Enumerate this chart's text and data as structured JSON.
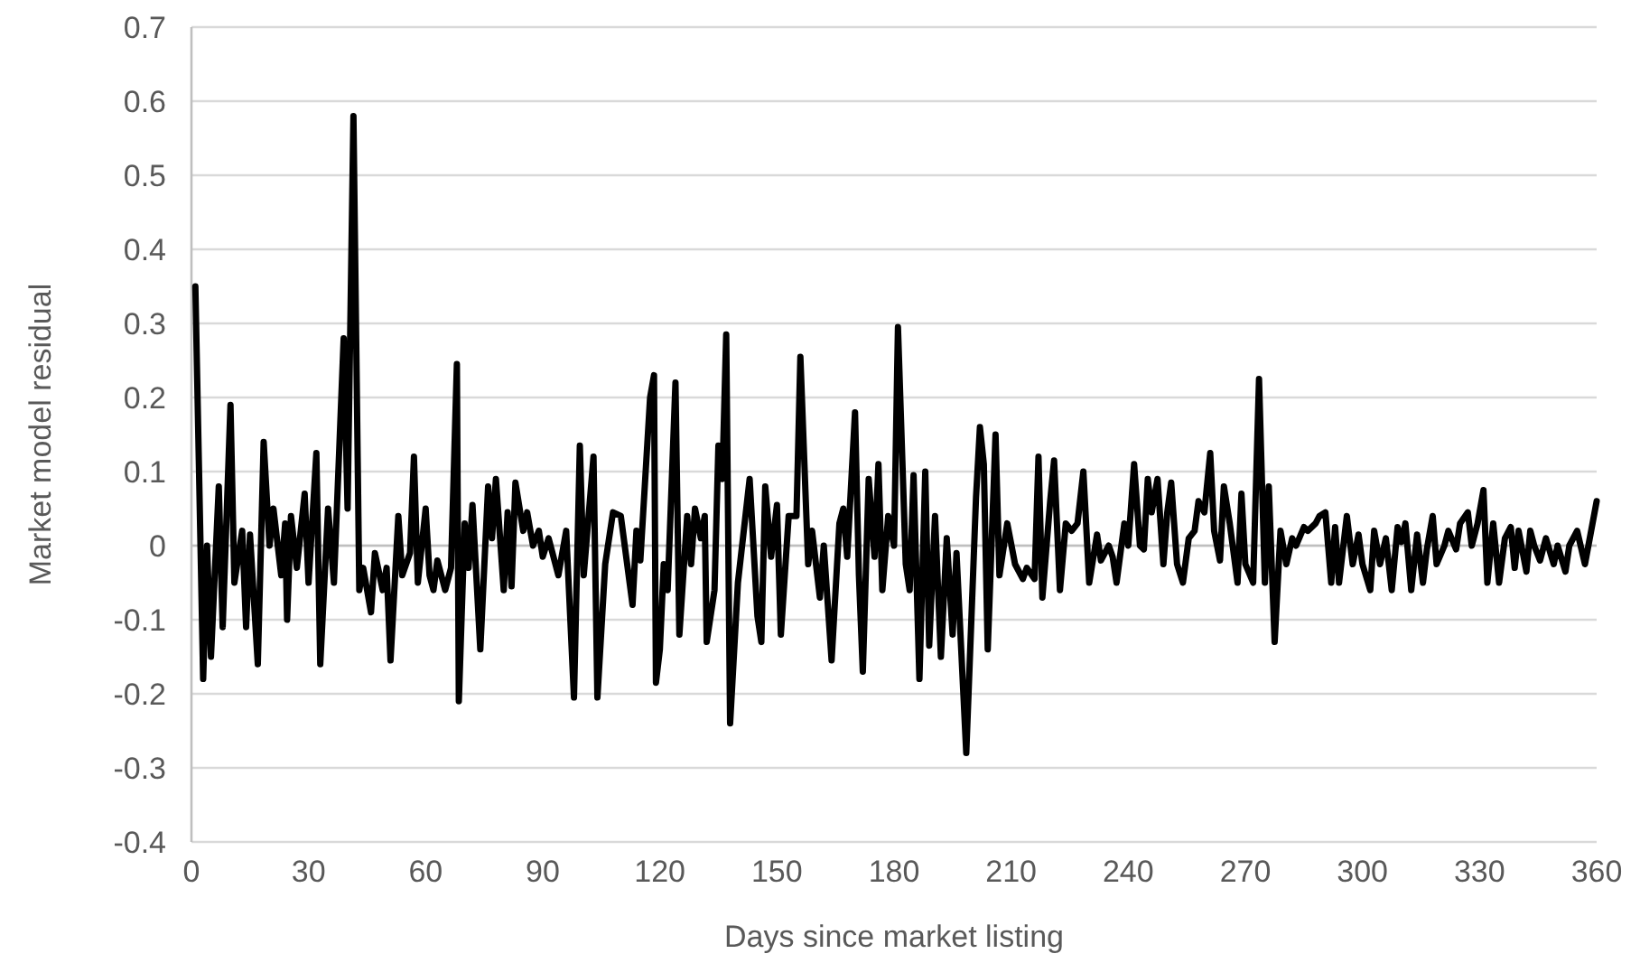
{
  "chart_data": {
    "type": "line",
    "xlabel": "Days since market listing",
    "ylabel": "Market model residual",
    "xlim": [
      0,
      360
    ],
    "xticks": [
      0,
      30,
      60,
      90,
      120,
      150,
      180,
      210,
      240,
      270,
      300,
      330,
      360
    ],
    "ylim": [
      -0.4,
      0.7
    ],
    "yticks": [
      -0.4,
      -0.3,
      -0.2,
      -0.1,
      0,
      0.1,
      0.2,
      0.3,
      0.4,
      0.5,
      0.6,
      0.7
    ],
    "grid": "y",
    "series": [
      {
        "color": "#000000",
        "x": [
          1,
          3,
          4,
          5,
          7,
          8,
          10,
          11,
          13,
          14,
          15,
          17,
          18.5,
          20,
          21,
          23,
          24,
          24.5,
          25.5,
          27,
          29,
          30,
          32,
          33,
          35,
          36.5,
          39,
          40,
          41.5,
          43,
          44,
          46,
          47,
          49,
          50,
          51,
          53,
          54,
          56,
          57,
          58,
          60,
          61,
          62,
          63,
          65,
          66.5,
          68,
          68.5,
          70,
          71,
          72,
          74,
          76,
          77,
          78,
          80,
          81,
          82,
          83,
          85,
          86,
          87.5,
          89,
          90,
          91.5,
          94,
          96,
          98,
          99.5,
          100.5,
          103,
          104,
          106,
          108,
          110,
          113,
          114,
          115,
          117.5,
          118.5,
          119,
          120,
          121,
          122,
          124,
          125,
          127,
          128,
          129,
          130.5,
          131.5,
          132,
          134,
          135,
          136,
          137,
          138,
          140,
          143,
          145,
          146,
          147,
          148.5,
          150,
          151,
          153,
          155,
          156,
          158,
          159,
          161,
          162,
          164,
          166,
          167,
          168,
          170,
          171,
          172,
          173.5,
          175,
          176,
          177,
          178.5,
          180,
          181,
          183,
          184,
          185,
          186.5,
          188,
          189,
          190.5,
          192,
          193.5,
          195,
          196,
          198.5,
          201,
          202,
          203,
          204,
          206,
          207,
          209,
          211,
          213,
          214,
          216,
          217,
          218,
          220,
          221,
          222.5,
          224,
          225.5,
          227,
          228.5,
          230,
          232,
          233,
          235,
          236,
          237,
          239,
          240,
          241.5,
          243,
          244,
          245,
          246,
          247.5,
          249,
          250,
          251,
          252.5,
          254,
          255.5,
          257,
          258,
          259.5,
          261,
          262,
          263.5,
          264.5,
          266,
          268,
          269,
          270,
          272,
          273.5,
          275,
          276,
          277.5,
          279,
          280.5,
          282,
          283,
          285,
          286,
          288,
          289,
          290.5,
          292,
          293,
          294,
          296,
          297.5,
          299,
          300,
          302,
          303,
          304.5,
          306,
          307.5,
          309,
          310,
          311,
          312.5,
          314,
          315.5,
          316.5,
          318,
          319,
          321,
          322,
          324,
          325,
          327,
          328,
          329.5,
          331,
          332,
          333.5,
          335,
          336.5,
          338,
          339,
          340,
          342,
          343,
          344,
          345.5,
          347,
          349,
          350,
          352,
          353,
          355,
          357,
          360
        ],
        "values": [
          0.35,
          -0.18,
          0,
          -0.15,
          0.08,
          -0.11,
          0.19,
          -0.05,
          0.02,
          -0.11,
          0.015,
          -0.16,
          0.14,
          0,
          0.05,
          -0.04,
          0.03,
          -0.1,
          0.04,
          -0.03,
          0.07,
          -0.05,
          0.125,
          -0.16,
          0.05,
          -0.05,
          0.28,
          0.05,
          0.58,
          -0.06,
          -0.03,
          -0.09,
          -0.01,
          -0.06,
          -0.03,
          -0.155,
          0.04,
          -0.04,
          -0.01,
          0.12,
          -0.05,
          0.05,
          -0.04,
          -0.06,
          -0.02,
          -0.06,
          -0.03,
          0.245,
          -0.21,
          0.03,
          -0.03,
          0.055,
          -0.14,
          0.08,
          0.01,
          0.09,
          -0.06,
          0.045,
          -0.055,
          0.085,
          0.02,
          0.045,
          0,
          0.02,
          -0.015,
          0.01,
          -0.04,
          0.02,
          -0.205,
          0.135,
          -0.04,
          0.12,
          -0.205,
          -0.025,
          0.045,
          0.04,
          -0.08,
          0.02,
          -0.02,
          0.2,
          0.23,
          -0.185,
          -0.14,
          -0.025,
          -0.06,
          0.22,
          -0.12,
          0.04,
          -0.025,
          0.05,
          0.01,
          0.04,
          -0.13,
          -0.06,
          0.135,
          0.09,
          0.285,
          -0.24,
          -0.05,
          0.09,
          -0.095,
          -0.13,
          0.08,
          -0.015,
          0.055,
          -0.12,
          0.04,
          0.04,
          0.255,
          -0.025,
          0.02,
          -0.07,
          0,
          -0.155,
          0.03,
          0.05,
          -0.015,
          0.18,
          -0.04,
          -0.17,
          0.09,
          -0.015,
          0.11,
          -0.06,
          0.04,
          0,
          0.295,
          -0.025,
          -0.06,
          0.095,
          -0.18,
          0.1,
          -0.135,
          0.04,
          -0.15,
          0.01,
          -0.12,
          -0.01,
          -0.28,
          0.065,
          0.16,
          0.11,
          -0.14,
          0.15,
          -0.04,
          0.03,
          -0.025,
          -0.045,
          -0.03,
          -0.045,
          0.12,
          -0.07,
          0.06,
          0.115,
          -0.06,
          0.03,
          0.02,
          0.03,
          0.1,
          -0.05,
          0.015,
          -0.02,
          0,
          -0.015,
          -0.05,
          0.03,
          0,
          0.11,
          0,
          -0.005,
          0.09,
          0.045,
          0.09,
          -0.025,
          0.045,
          0.085,
          -0.025,
          -0.05,
          0.01,
          0.02,
          0.06,
          0.045,
          0.125,
          0.02,
          -0.02,
          0.08,
          0.03,
          -0.05,
          0.07,
          -0.025,
          -0.05,
          0.225,
          -0.05,
          0.08,
          -0.13,
          0.02,
          -0.025,
          0.01,
          0,
          0.025,
          0.02,
          0.03,
          0.04,
          0.045,
          -0.05,
          0.025,
          -0.05,
          0.04,
          -0.025,
          0.015,
          -0.025,
          -0.06,
          0.02,
          -0.025,
          0.01,
          -0.06,
          0.025,
          0.005,
          0.03,
          -0.06,
          0.015,
          -0.05,
          -0.005,
          0.04,
          -0.025,
          0,
          0.02,
          -0.005,
          0.03,
          0.045,
          0,
          0.03,
          0.075,
          -0.05,
          0.03,
          -0.05,
          0.01,
          0.025,
          -0.03,
          0.02,
          -0.035,
          0.02,
          0,
          -0.02,
          0.01,
          -0.025,
          0,
          -0.035,
          0,
          0.02,
          -0.025,
          0.06
        ]
      }
    ]
  }
}
